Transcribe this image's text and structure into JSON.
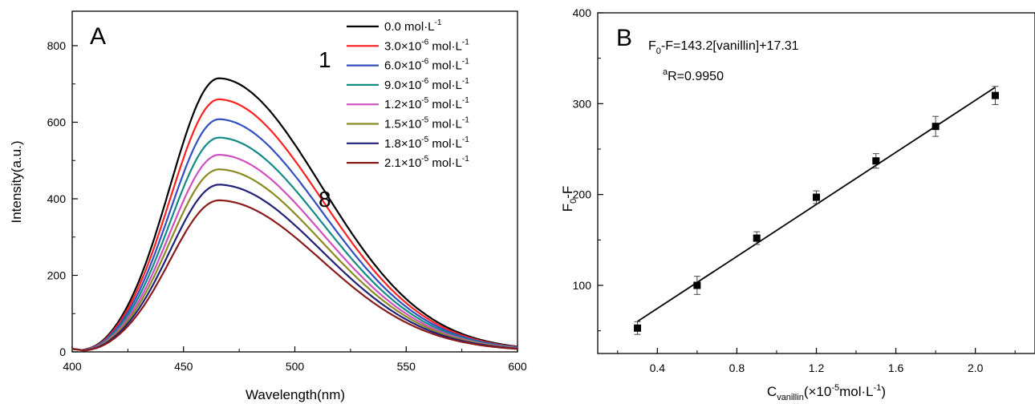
{
  "chart_data": [
    {
      "type": "line",
      "panel_label": "A",
      "xlabel": "Wavelength(nm)",
      "ylabel": "Intensity(a.u.)",
      "xlim": [
        400,
        600
      ],
      "ylim": [
        0,
        890
      ],
      "xticks": [
        400,
        450,
        500,
        550,
        600
      ],
      "yticks": [
        0,
        200,
        400,
        600,
        800
      ],
      "curve_labels": {
        "first": "1",
        "last": "8"
      },
      "series": [
        {
          "name": "0.0 mol·L⁻¹",
          "legend_base": "0.0 mol·L",
          "legend_exp": "-1",
          "peak_x": 466,
          "peak_y": 715,
          "color": "#000000"
        },
        {
          "name": "3.0×10⁻⁶ mol·L⁻¹",
          "legend_base": "3.0×10",
          "legend_exp1": "-6",
          "legend_unit": " mol·L",
          "legend_exp": "-1",
          "peak_x": 466,
          "peak_y": 660,
          "color": "#ff2020"
        },
        {
          "name": "6.0×10⁻⁶ mol·L⁻¹",
          "legend_base": "6.0×10",
          "legend_exp1": "-6",
          "legend_unit": " mol·L",
          "legend_exp": "-1",
          "peak_x": 466,
          "peak_y": 608,
          "color": "#3050c0"
        },
        {
          "name": "9.0×10⁻⁶ mol·L⁻¹",
          "legend_base": "9.0×10",
          "legend_exp1": "-6",
          "legend_unit": " mol·L",
          "legend_exp": "-1",
          "peak_x": 466,
          "peak_y": 560,
          "color": "#138a86"
        },
        {
          "name": "1.2×10⁻⁵ mol·L⁻¹",
          "legend_base": "1.2×10",
          "legend_exp1": "-5",
          "legend_unit": " mol·L",
          "legend_exp": "-1",
          "peak_x": 466,
          "peak_y": 515,
          "color": "#d050c0"
        },
        {
          "name": "1.5×10⁻⁵ mol·L⁻¹",
          "legend_base": "1.5×10",
          "legend_exp1": "-5",
          "legend_unit": " mol·L",
          "legend_exp": "-1",
          "peak_x": 466,
          "peak_y": 477,
          "color": "#8a8a20"
        },
        {
          "name": "1.8×10⁻⁵ mol·L⁻¹",
          "legend_base": "1.8×10",
          "legend_exp1": "-5",
          "legend_unit": " mol·L",
          "legend_exp": "-1",
          "peak_x": 466,
          "peak_y": 437,
          "color": "#20207a"
        },
        {
          "name": "2.1×10⁻⁵ mol·L⁻¹",
          "legend_base": "2.1×10",
          "legend_exp1": "-5",
          "legend_unit": " mol·L",
          "legend_exp": "-1",
          "peak_x": 466,
          "peak_y": 396,
          "color": "#8a1a1a"
        }
      ]
    },
    {
      "type": "scatter",
      "panel_label": "B",
      "xlabel_parts": {
        "c": "C",
        "sub": "vanillin",
        "mid": "(×10",
        "exp": "-5",
        "unit": "mol·L",
        "exp2": "-1",
        "end": ")"
      },
      "ylabel_parts": {
        "f": "F",
        "sub": "0",
        "rest": "-F"
      },
      "equation_parts": {
        "f": "F",
        "sub": "0",
        "rest": "-F=143.2[vanillin]+17.31"
      },
      "r_parts": {
        "sup": "a",
        "rest": "R=0.9950"
      },
      "xlim": [
        0.1,
        2.3
      ],
      "ylim": [
        25,
        400
      ],
      "xticks": [
        0.4,
        0.8,
        1.2,
        1.6,
        2.0
      ],
      "yticks": [
        100,
        200,
        300,
        400
      ],
      "points": [
        {
          "x": 0.3,
          "y": 53,
          "err": 7
        },
        {
          "x": 0.6,
          "y": 100,
          "err": 10
        },
        {
          "x": 0.9,
          "y": 152,
          "err": 7
        },
        {
          "x": 1.2,
          "y": 197,
          "err": 7
        },
        {
          "x": 1.5,
          "y": 237,
          "err": 8
        },
        {
          "x": 1.8,
          "y": 275,
          "err": 11
        },
        {
          "x": 2.1,
          "y": 309,
          "err": 10
        }
      ],
      "fit": {
        "x_start": 0.3,
        "x_end": 2.1,
        "slope": 143.2,
        "intercept": 17.31
      }
    }
  ]
}
